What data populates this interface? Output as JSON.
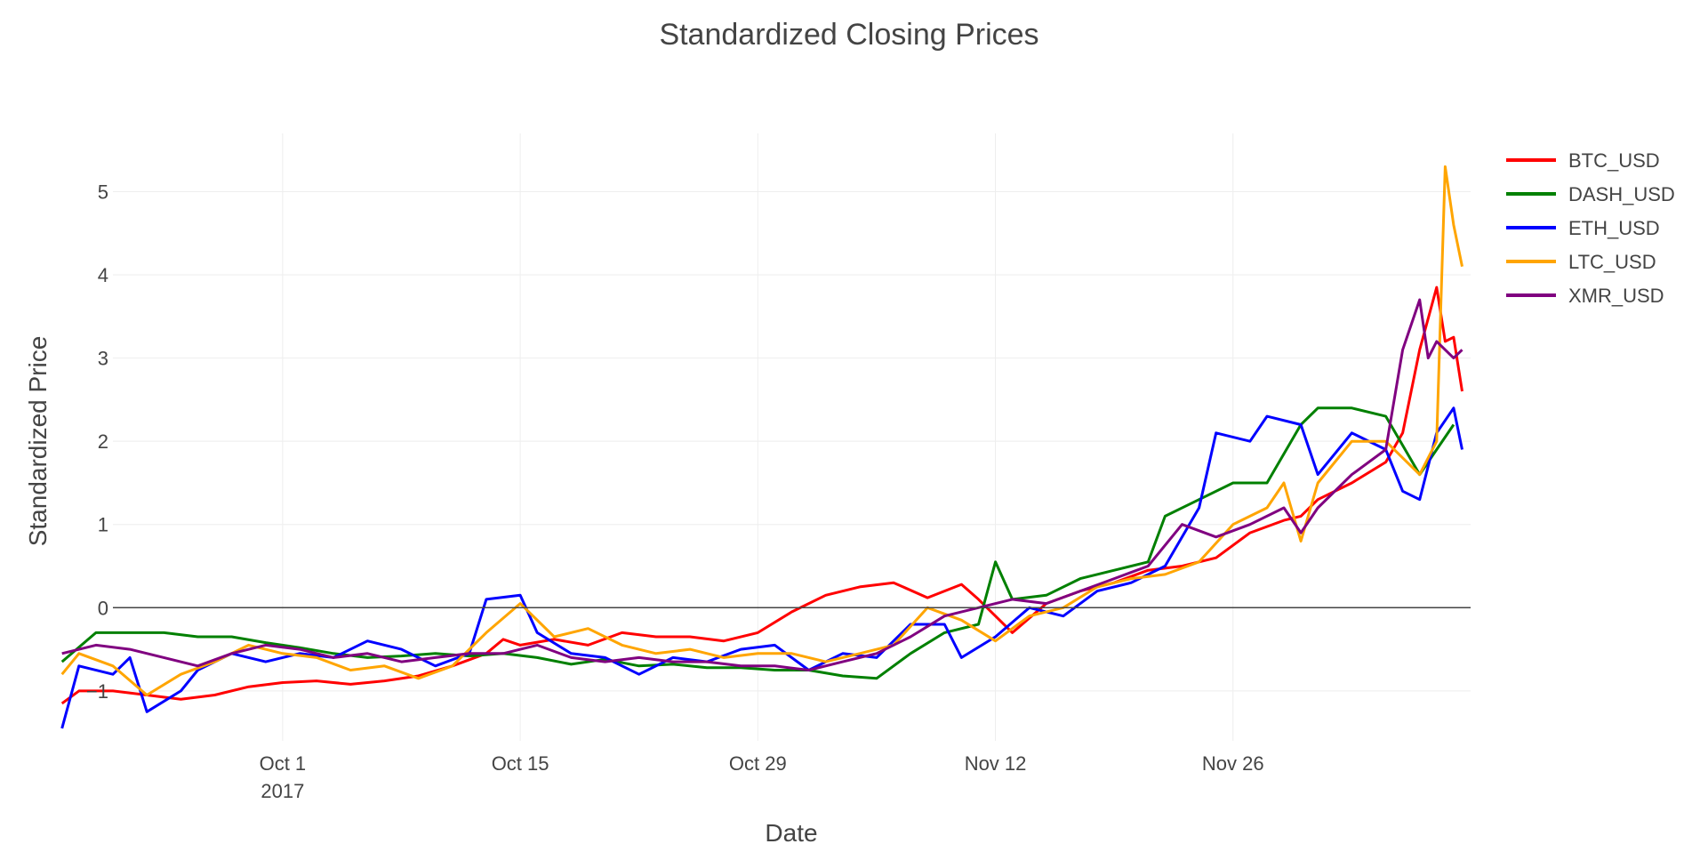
{
  "chart_data": {
    "type": "line",
    "title": "Standardized Closing Prices",
    "xlabel": "Date",
    "ylabel": "Standardized Price",
    "xlim": [
      "2017-09-21",
      "2017-12-10"
    ],
    "ylim": [
      -1.6,
      5.7
    ],
    "x_ticks": [
      {
        "date": "2017-10-01",
        "label": "Oct 1",
        "sublabel": "2017"
      },
      {
        "date": "2017-10-15",
        "label": "Oct 15",
        "sublabel": ""
      },
      {
        "date": "2017-10-29",
        "label": "Oct 29",
        "sublabel": ""
      },
      {
        "date": "2017-11-12",
        "label": "Nov 12",
        "sublabel": ""
      },
      {
        "date": "2017-11-26",
        "label": "Nov 26",
        "sublabel": ""
      }
    ],
    "y_ticks": [
      {
        "value": -1,
        "label": "−1"
      },
      {
        "value": 0,
        "label": "0"
      },
      {
        "value": 1,
        "label": "1"
      },
      {
        "value": 2,
        "label": "2"
      },
      {
        "value": 3,
        "label": "3"
      },
      {
        "value": 4,
        "label": "4"
      },
      {
        "value": 5,
        "label": "5"
      }
    ],
    "grid": true,
    "zero_line": true,
    "legend_position": "top-right",
    "series": [
      {
        "name": "BTC_USD",
        "color": "#ff0000",
        "points": [
          [
            "2017-09-18",
            -1.15
          ],
          [
            "2017-09-19",
            -1.0
          ],
          [
            "2017-09-21",
            -1.0
          ],
          [
            "2017-09-23",
            -1.05
          ],
          [
            "2017-09-25",
            -1.1
          ],
          [
            "2017-09-27",
            -1.05
          ],
          [
            "2017-09-29",
            -0.95
          ],
          [
            "2017-10-01",
            -0.9
          ],
          [
            "2017-10-03",
            -0.88
          ],
          [
            "2017-10-05",
            -0.92
          ],
          [
            "2017-10-07",
            -0.88
          ],
          [
            "2017-10-09",
            -0.82
          ],
          [
            "2017-10-11",
            -0.7
          ],
          [
            "2017-10-13",
            -0.55
          ],
          [
            "2017-10-14",
            -0.38
          ],
          [
            "2017-10-15",
            -0.45
          ],
          [
            "2017-10-17",
            -0.38
          ],
          [
            "2017-10-19",
            -0.45
          ],
          [
            "2017-10-21",
            -0.3
          ],
          [
            "2017-10-23",
            -0.35
          ],
          [
            "2017-10-25",
            -0.35
          ],
          [
            "2017-10-27",
            -0.4
          ],
          [
            "2017-10-29",
            -0.3
          ],
          [
            "2017-10-31",
            -0.05
          ],
          [
            "2017-11-02",
            0.15
          ],
          [
            "2017-11-04",
            0.25
          ],
          [
            "2017-11-06",
            0.3
          ],
          [
            "2017-11-08",
            0.12
          ],
          [
            "2017-11-10",
            0.28
          ],
          [
            "2017-11-11",
            0.1
          ],
          [
            "2017-11-12",
            -0.1
          ],
          [
            "2017-11-13",
            -0.3
          ],
          [
            "2017-11-15",
            0.05
          ],
          [
            "2017-11-17",
            0.2
          ],
          [
            "2017-11-19",
            0.3
          ],
          [
            "2017-11-21",
            0.45
          ],
          [
            "2017-11-23",
            0.5
          ],
          [
            "2017-11-25",
            0.6
          ],
          [
            "2017-11-27",
            0.9
          ],
          [
            "2017-11-29",
            1.05
          ],
          [
            "2017-11-30",
            1.1
          ],
          [
            "2017-12-01",
            1.3
          ],
          [
            "2017-12-03",
            1.5
          ],
          [
            "2017-12-05",
            1.75
          ],
          [
            "2017-12-06",
            2.1
          ],
          [
            "2017-12-07",
            3.1
          ],
          [
            "2017-12-08",
            3.85
          ],
          [
            "2017-12-08T12:00",
            3.2
          ],
          [
            "2017-12-09",
            3.25
          ],
          [
            "2017-12-09T12:00",
            2.6
          ]
        ]
      },
      {
        "name": "DASH_USD",
        "color": "#008000",
        "points": [
          [
            "2017-09-18",
            -0.65
          ],
          [
            "2017-09-20",
            -0.3
          ],
          [
            "2017-09-22",
            -0.3
          ],
          [
            "2017-09-24",
            -0.3
          ],
          [
            "2017-09-26",
            -0.35
          ],
          [
            "2017-09-28",
            -0.35
          ],
          [
            "2017-09-30",
            -0.42
          ],
          [
            "2017-10-02",
            -0.48
          ],
          [
            "2017-10-04",
            -0.55
          ],
          [
            "2017-10-06",
            -0.6
          ],
          [
            "2017-10-08",
            -0.58
          ],
          [
            "2017-10-10",
            -0.55
          ],
          [
            "2017-10-12",
            -0.58
          ],
          [
            "2017-10-14",
            -0.55
          ],
          [
            "2017-10-16",
            -0.6
          ],
          [
            "2017-10-18",
            -0.68
          ],
          [
            "2017-10-20",
            -0.62
          ],
          [
            "2017-10-22",
            -0.7
          ],
          [
            "2017-10-24",
            -0.68
          ],
          [
            "2017-10-26",
            -0.72
          ],
          [
            "2017-10-28",
            -0.72
          ],
          [
            "2017-10-30",
            -0.75
          ],
          [
            "2017-11-01",
            -0.75
          ],
          [
            "2017-11-03",
            -0.82
          ],
          [
            "2017-11-05",
            -0.85
          ],
          [
            "2017-11-07",
            -0.55
          ],
          [
            "2017-11-09",
            -0.3
          ],
          [
            "2017-11-11",
            -0.2
          ],
          [
            "2017-11-12",
            0.55
          ],
          [
            "2017-11-13",
            0.1
          ],
          [
            "2017-11-15",
            0.15
          ],
          [
            "2017-11-17",
            0.35
          ],
          [
            "2017-11-19",
            0.45
          ],
          [
            "2017-11-21",
            0.55
          ],
          [
            "2017-11-22",
            1.1
          ],
          [
            "2017-11-24",
            1.3
          ],
          [
            "2017-11-26",
            1.5
          ],
          [
            "2017-11-28",
            1.5
          ],
          [
            "2017-11-30",
            2.2
          ],
          [
            "2017-12-01",
            2.4
          ],
          [
            "2017-12-03",
            2.4
          ],
          [
            "2017-12-05",
            2.3
          ],
          [
            "2017-12-07",
            1.6
          ],
          [
            "2017-12-08",
            1.9
          ],
          [
            "2017-12-09",
            2.2
          ]
        ]
      },
      {
        "name": "ETH_USD",
        "color": "#0000ff",
        "points": [
          [
            "2017-09-18",
            -1.45
          ],
          [
            "2017-09-19",
            -0.7
          ],
          [
            "2017-09-21",
            -0.8
          ],
          [
            "2017-09-22",
            -0.6
          ],
          [
            "2017-09-23",
            -1.25
          ],
          [
            "2017-09-25",
            -1.0
          ],
          [
            "2017-09-26",
            -0.75
          ],
          [
            "2017-09-28",
            -0.55
          ],
          [
            "2017-09-30",
            -0.65
          ],
          [
            "2017-10-02",
            -0.55
          ],
          [
            "2017-10-04",
            -0.6
          ],
          [
            "2017-10-06",
            -0.4
          ],
          [
            "2017-10-08",
            -0.5
          ],
          [
            "2017-10-10",
            -0.7
          ],
          [
            "2017-10-12",
            -0.55
          ],
          [
            "2017-10-13",
            0.1
          ],
          [
            "2017-10-15",
            0.15
          ],
          [
            "2017-10-16",
            -0.3
          ],
          [
            "2017-10-18",
            -0.55
          ],
          [
            "2017-10-20",
            -0.6
          ],
          [
            "2017-10-22",
            -0.8
          ],
          [
            "2017-10-24",
            -0.6
          ],
          [
            "2017-10-26",
            -0.65
          ],
          [
            "2017-10-28",
            -0.5
          ],
          [
            "2017-10-30",
            -0.45
          ],
          [
            "2017-11-01",
            -0.75
          ],
          [
            "2017-11-03",
            -0.55
          ],
          [
            "2017-11-05",
            -0.6
          ],
          [
            "2017-11-07",
            -0.2
          ],
          [
            "2017-11-09",
            -0.2
          ],
          [
            "2017-11-10",
            -0.6
          ],
          [
            "2017-11-12",
            -0.35
          ],
          [
            "2017-11-14",
            0.0
          ],
          [
            "2017-11-16",
            -0.1
          ],
          [
            "2017-11-18",
            0.2
          ],
          [
            "2017-11-20",
            0.3
          ],
          [
            "2017-11-22",
            0.5
          ],
          [
            "2017-11-24",
            1.2
          ],
          [
            "2017-11-25",
            2.1
          ],
          [
            "2017-11-27",
            2.0
          ],
          [
            "2017-11-28",
            2.3
          ],
          [
            "2017-11-30",
            2.2
          ],
          [
            "2017-12-01",
            1.6
          ],
          [
            "2017-12-03",
            2.1
          ],
          [
            "2017-12-05",
            1.9
          ],
          [
            "2017-12-06",
            1.4
          ],
          [
            "2017-12-07",
            1.3
          ],
          [
            "2017-12-08",
            2.1
          ],
          [
            "2017-12-09",
            2.4
          ],
          [
            "2017-12-09T12:00",
            1.9
          ]
        ]
      },
      {
        "name": "LTC_USD",
        "color": "#ffa500",
        "points": [
          [
            "2017-09-18",
            -0.8
          ],
          [
            "2017-09-19",
            -0.55
          ],
          [
            "2017-09-21",
            -0.7
          ],
          [
            "2017-09-23",
            -1.05
          ],
          [
            "2017-09-25",
            -0.8
          ],
          [
            "2017-09-27",
            -0.65
          ],
          [
            "2017-09-29",
            -0.45
          ],
          [
            "2017-10-01",
            -0.55
          ],
          [
            "2017-10-03",
            -0.6
          ],
          [
            "2017-10-05",
            -0.75
          ],
          [
            "2017-10-07",
            -0.7
          ],
          [
            "2017-10-09",
            -0.85
          ],
          [
            "2017-10-11",
            -0.7
          ],
          [
            "2017-10-13",
            -0.3
          ],
          [
            "2017-10-15",
            0.05
          ],
          [
            "2017-10-17",
            -0.35
          ],
          [
            "2017-10-19",
            -0.25
          ],
          [
            "2017-10-21",
            -0.45
          ],
          [
            "2017-10-23",
            -0.55
          ],
          [
            "2017-10-25",
            -0.5
          ],
          [
            "2017-10-27",
            -0.6
          ],
          [
            "2017-10-29",
            -0.55
          ],
          [
            "2017-10-31",
            -0.55
          ],
          [
            "2017-11-02",
            -0.65
          ],
          [
            "2017-11-04",
            -0.55
          ],
          [
            "2017-11-06",
            -0.45
          ],
          [
            "2017-11-08",
            0.0
          ],
          [
            "2017-11-10",
            -0.15
          ],
          [
            "2017-11-12",
            -0.4
          ],
          [
            "2017-11-14",
            -0.1
          ],
          [
            "2017-11-16",
            0.0
          ],
          [
            "2017-11-18",
            0.25
          ],
          [
            "2017-11-20",
            0.35
          ],
          [
            "2017-11-22",
            0.4
          ],
          [
            "2017-11-24",
            0.55
          ],
          [
            "2017-11-26",
            1.0
          ],
          [
            "2017-11-28",
            1.2
          ],
          [
            "2017-11-29",
            1.5
          ],
          [
            "2017-11-30",
            0.8
          ],
          [
            "2017-12-01",
            1.5
          ],
          [
            "2017-12-03",
            2.0
          ],
          [
            "2017-12-05",
            2.0
          ],
          [
            "2017-12-07",
            1.6
          ],
          [
            "2017-12-08",
            2.0
          ],
          [
            "2017-12-08T12:00",
            5.3
          ],
          [
            "2017-12-09",
            4.6
          ],
          [
            "2017-12-09T12:00",
            4.1
          ]
        ]
      },
      {
        "name": "XMR_USD",
        "color": "#800080",
        "points": [
          [
            "2017-09-18",
            -0.55
          ],
          [
            "2017-09-20",
            -0.45
          ],
          [
            "2017-09-22",
            -0.5
          ],
          [
            "2017-09-24",
            -0.6
          ],
          [
            "2017-09-26",
            -0.7
          ],
          [
            "2017-09-28",
            -0.55
          ],
          [
            "2017-09-30",
            -0.45
          ],
          [
            "2017-10-02",
            -0.5
          ],
          [
            "2017-10-04",
            -0.6
          ],
          [
            "2017-10-06",
            -0.55
          ],
          [
            "2017-10-08",
            -0.65
          ],
          [
            "2017-10-10",
            -0.6
          ],
          [
            "2017-10-12",
            -0.55
          ],
          [
            "2017-10-14",
            -0.55
          ],
          [
            "2017-10-16",
            -0.45
          ],
          [
            "2017-10-18",
            -0.6
          ],
          [
            "2017-10-20",
            -0.65
          ],
          [
            "2017-10-22",
            -0.6
          ],
          [
            "2017-10-24",
            -0.65
          ],
          [
            "2017-10-26",
            -0.65
          ],
          [
            "2017-10-28",
            -0.7
          ],
          [
            "2017-10-30",
            -0.7
          ],
          [
            "2017-11-01",
            -0.75
          ],
          [
            "2017-11-03",
            -0.65
          ],
          [
            "2017-11-05",
            -0.55
          ],
          [
            "2017-11-07",
            -0.35
          ],
          [
            "2017-11-09",
            -0.1
          ],
          [
            "2017-11-11",
            0.0
          ],
          [
            "2017-11-13",
            0.1
          ],
          [
            "2017-11-15",
            0.05
          ],
          [
            "2017-11-17",
            0.2
          ],
          [
            "2017-11-19",
            0.35
          ],
          [
            "2017-11-21",
            0.5
          ],
          [
            "2017-11-23",
            1.0
          ],
          [
            "2017-11-25",
            0.85
          ],
          [
            "2017-11-27",
            1.0
          ],
          [
            "2017-11-29",
            1.2
          ],
          [
            "2017-11-30",
            0.9
          ],
          [
            "2017-12-01",
            1.2
          ],
          [
            "2017-12-03",
            1.6
          ],
          [
            "2017-12-05",
            1.9
          ],
          [
            "2017-12-06",
            3.1
          ],
          [
            "2017-12-07",
            3.7
          ],
          [
            "2017-12-07T12:00",
            3.0
          ],
          [
            "2017-12-08",
            3.2
          ],
          [
            "2017-12-09",
            3.0
          ],
          [
            "2017-12-09T12:00",
            3.1
          ]
        ]
      }
    ]
  }
}
